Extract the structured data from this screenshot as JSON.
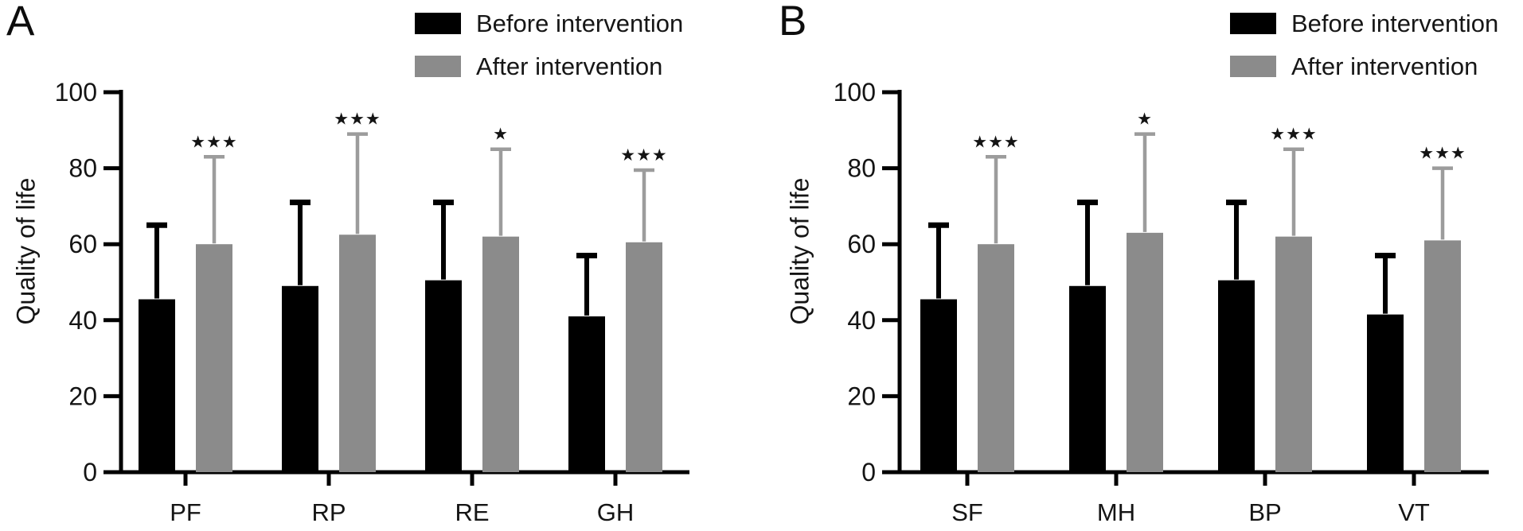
{
  "figure": {
    "background_color": "#ffffff",
    "bar_color_before": "#000000",
    "bar_color_after": "#8b8b8b"
  },
  "chart_data": [
    {
      "type": "bar",
      "panel_label": "A",
      "title": "",
      "xlabel": "",
      "ylabel": "Quality of life",
      "ylim": [
        0,
        100
      ],
      "yticks": [
        0,
        20,
        40,
        60,
        80,
        100
      ],
      "grid": false,
      "legend_position": "top-right",
      "categories": [
        "PF",
        "RP",
        "RE",
        "GH"
      ],
      "series": [
        {
          "name": "Before intervention",
          "color": "#000000",
          "error_color": "#000000",
          "values": [
            45.5,
            49,
            50.5,
            41
          ],
          "errors_upper": [
            19.5,
            22,
            20.5,
            16
          ]
        },
        {
          "name": "After intervention",
          "color": "#8b8b8b",
          "error_color": "#9c9c9c",
          "values": [
            60,
            62.5,
            62,
            60.5
          ],
          "errors_upper": [
            23,
            26.5,
            23,
            19
          ]
        }
      ],
      "significance": [
        "***",
        "***",
        "*",
        "***"
      ],
      "significance_marker": "★"
    },
    {
      "type": "bar",
      "panel_label": "B",
      "title": "",
      "xlabel": "",
      "ylabel": "Quality of life",
      "ylim": [
        0,
        100
      ],
      "yticks": [
        0,
        20,
        40,
        60,
        80,
        100
      ],
      "grid": false,
      "legend_position": "top-right",
      "categories": [
        "SF",
        "MH",
        "BP",
        "VT"
      ],
      "series": [
        {
          "name": "Before intervention",
          "color": "#000000",
          "error_color": "#000000",
          "values": [
            45.5,
            49,
            50.5,
            41.5
          ],
          "errors_upper": [
            19.5,
            22,
            20.5,
            15.5
          ]
        },
        {
          "name": "After intervention",
          "color": "#8b8b8b",
          "error_color": "#9c9c9c",
          "values": [
            60,
            63,
            62,
            61
          ],
          "errors_upper": [
            23,
            26,
            23,
            19
          ]
        }
      ],
      "significance": [
        "***",
        "*",
        "***",
        "***"
      ],
      "significance_marker": "★"
    }
  ]
}
